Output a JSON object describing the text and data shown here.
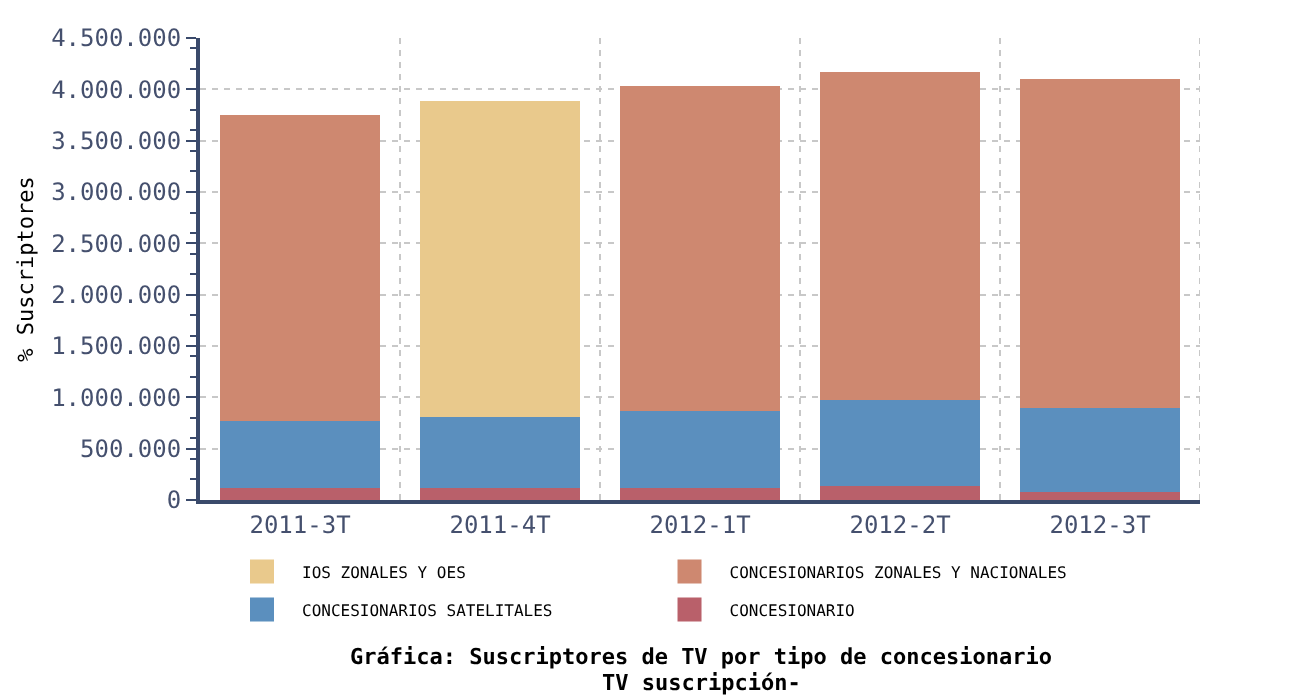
{
  "chart_data": {
    "type": "bar",
    "stacked": true,
    "title": "Gráfica: Suscriptores de TV por tipo de concesionario",
    "subtitle": "TV suscripción-",
    "ylabel": "% Suscriptores",
    "categories": [
      "2011-3T",
      "2011-4T",
      "2012-1T",
      "2012-2T",
      "2012-3T"
    ],
    "series": [
      {
        "name": "CONCESIONARIO",
        "color": "#b9606a",
        "values": [
          120000,
          120000,
          120000,
          140000,
          80000
        ]
      },
      {
        "name": "CONCESIONARIOS SATELITALES",
        "color": "#5b8fbe",
        "values": [
          650000,
          690000,
          750000,
          830000,
          820000
        ]
      },
      {
        "name": "CONCESIONARIOS ZONALES Y NACIONALES",
        "color": "#ce8870",
        "values": [
          2980000,
          null,
          3160000,
          3200000,
          3200000
        ]
      },
      {
        "name": "IOS ZONALES Y OES",
        "color": "#e9c98c",
        "values": [
          null,
          3080000,
          null,
          null,
          null
        ]
      }
    ],
    "ylim": [
      0,
      4500000
    ],
    "yticks": [
      {
        "value": 0,
        "label": "0"
      },
      {
        "value": 500000,
        "label": "500.000"
      },
      {
        "value": 1000000,
        "label": "1.000.000"
      },
      {
        "value": 1500000,
        "label": "1.500.000"
      },
      {
        "value": 2000000,
        "label": "2.000.000"
      },
      {
        "value": 2500000,
        "label": "2.500.000"
      },
      {
        "value": 3000000,
        "label": "3.000.000"
      },
      {
        "value": 3500000,
        "label": "3.500.000"
      },
      {
        "value": 4000000,
        "label": "4.000.000"
      },
      {
        "value": 4500000,
        "label": "4.500.000"
      }
    ],
    "grid": true,
    "legend": "bottom"
  }
}
